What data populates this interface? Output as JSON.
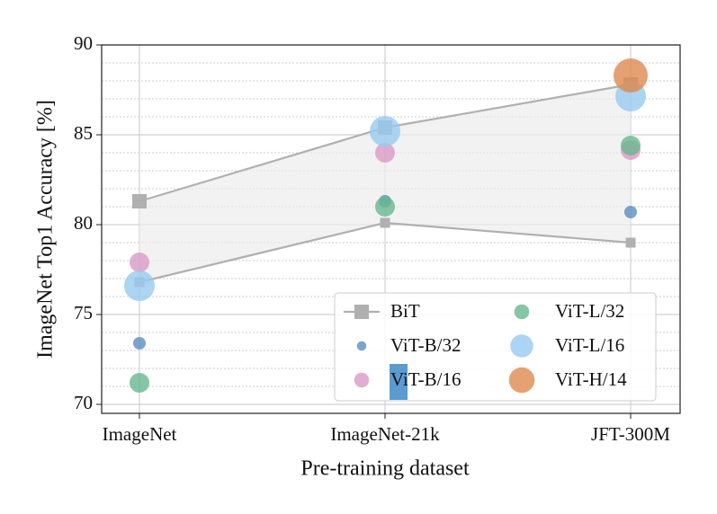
{
  "chart_data": {
    "type": "scatter",
    "x_label": "Pre-training dataset",
    "y_label": "ImageNet Top1 Accuracy [%]",
    "categories": [
      "ImageNet",
      "ImageNet-21k",
      "JFT-300M"
    ],
    "ylim": [
      69.5,
      90
    ],
    "yticks": [
      70,
      75,
      80,
      85,
      90
    ],
    "minor_yticks": [
      71,
      72,
      73,
      74,
      76,
      77,
      78,
      79,
      81,
      82,
      83,
      84,
      86,
      87,
      88,
      89
    ],
    "grid": true,
    "legend": "lower right",
    "band": {
      "name": "BiT",
      "color": "#b0b0b0",
      "min": [
        76.8,
        80.1,
        79.0
      ],
      "max": [
        81.3,
        85.4,
        87.8
      ]
    },
    "series": [
      {
        "name": "ViT-B/32",
        "color": "#5b8fc0",
        "values": [
          73.4,
          81.3,
          80.7
        ]
      },
      {
        "name": "ViT-B/16",
        "color": "#d99ac6",
        "values": [
          77.9,
          84.0,
          84.15
        ]
      },
      {
        "name": "ViT-L/32",
        "color": "#66b88e",
        "values": [
          71.2,
          81.0,
          84.4
        ]
      },
      {
        "name": "ViT-L/16",
        "color": "#96caf0",
        "values": [
          76.6,
          85.2,
          87.15
        ]
      },
      {
        "name": "ViT-H/14",
        "color": "#e08a4f",
        "values": [
          null,
          null,
          88.3
        ]
      }
    ]
  }
}
